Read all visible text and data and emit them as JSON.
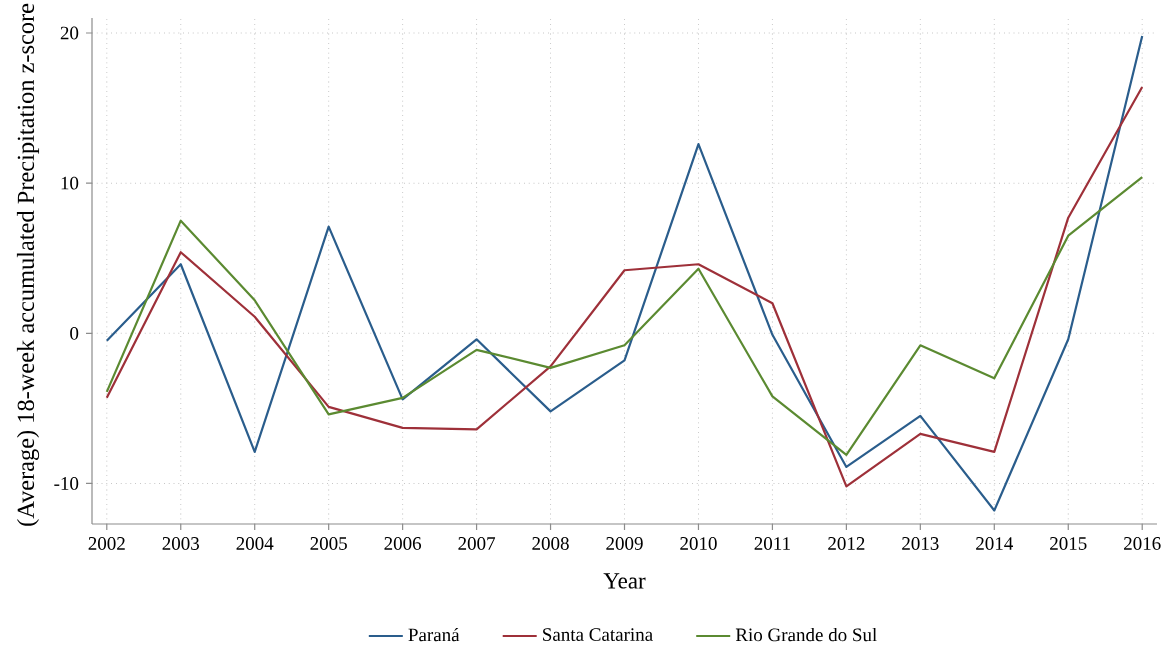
{
  "chart_data": {
    "type": "line",
    "xlabel": "Year",
    "ylabel": "(Average) 18-week accumulated Precipitation z-score",
    "x": [
      2002,
      2003,
      2004,
      2005,
      2006,
      2007,
      2008,
      2009,
      2010,
      2011,
      2012,
      2013,
      2014,
      2015,
      2016
    ],
    "series": [
      {
        "name": "Paraná",
        "color": "#2a5d8c",
        "values": [
          -0.5,
          4.6,
          -7.9,
          7.1,
          -4.4,
          -0.4,
          -5.2,
          -1.8,
          12.6,
          -0.1,
          -8.9,
          -5.5,
          -11.8,
          -0.4,
          19.8
        ]
      },
      {
        "name": "Santa Catarina",
        "color": "#9e3039",
        "values": [
          -4.3,
          5.4,
          1.1,
          -4.9,
          -6.3,
          -6.4,
          -2.2,
          4.2,
          4.6,
          2.0,
          -10.2,
          -6.7,
          -7.9,
          7.7,
          16.4
        ]
      },
      {
        "name": "Rio Grande do Sul",
        "color": "#5b8a31",
        "values": [
          -3.9,
          7.5,
          2.2,
          -5.4,
          -4.3,
          -1.1,
          -2.3,
          -0.8,
          4.3,
          -4.2,
          -8.1,
          -0.8,
          -3.0,
          6.5,
          10.4
        ]
      }
    ],
    "xlim": [
      2001.8,
      2016.2
    ],
    "ylim": [
      -12.7,
      21
    ],
    "xticks": [
      2002,
      2003,
      2004,
      2005,
      2006,
      2007,
      2008,
      2009,
      2010,
      2011,
      2012,
      2013,
      2014,
      2015,
      2016
    ],
    "yticks": [
      -10,
      0,
      10,
      20
    ],
    "grid": true,
    "legend": "bottom",
    "marker": "none",
    "line_style": "solid"
  }
}
